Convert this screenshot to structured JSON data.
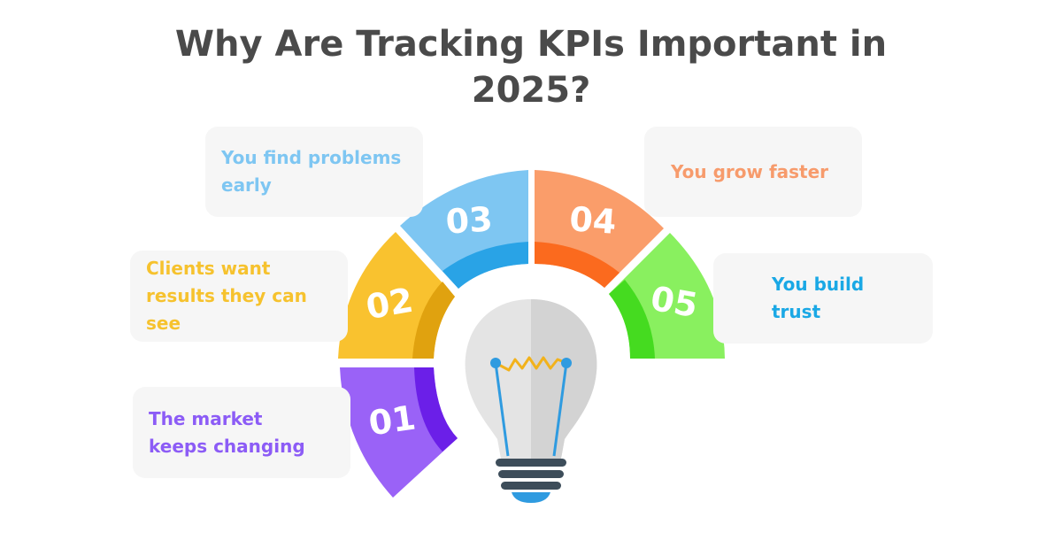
{
  "title": {
    "line1": "Why Are Tracking KPIs Important in",
    "line2": "2025?"
  },
  "segments": [
    {
      "number": "01",
      "text_line1": "The market",
      "text_line2": "keeps changing",
      "text_line3": "",
      "color": "#9a62f7",
      "inner_color": "#6b1fe8"
    },
    {
      "number": "02",
      "text_line1": "Clients want",
      "text_line2": "results they can",
      "text_line3": "see",
      "color": "#f9c22f",
      "inner_color": "#e0a20f"
    },
    {
      "number": "03",
      "text_line1": "You find problems",
      "text_line2": "early",
      "text_line3": "",
      "color": "#7ec6f2",
      "inner_color": "#29a3e6"
    },
    {
      "number": "04",
      "text_line1": "You grow faster",
      "text_line2": "",
      "text_line3": "",
      "color": "#fa9d6a",
      "inner_color": "#fb6a1e"
    },
    {
      "number": "05",
      "text_line1": "You build",
      "text_line2": "trust",
      "text_line3": "",
      "color": "#89f05f",
      "inner_color": "#45db20"
    }
  ],
  "icon": "lightbulb-icon"
}
